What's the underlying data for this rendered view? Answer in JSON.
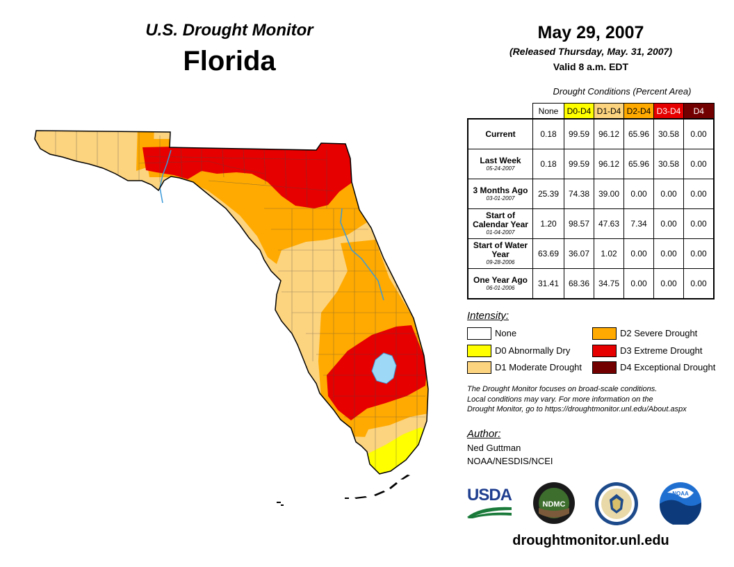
{
  "header": {
    "monitor_title": "U.S. Drought Monitor",
    "state": "Florida",
    "date": "May 29, 2007",
    "released": "(Released Thursday, May. 31, 2007)",
    "valid": "Valid 8 a.m. EDT"
  },
  "table": {
    "caption": "Drought Conditions (Percent Area)",
    "columns": [
      {
        "label": "None",
        "color": "#ffffff",
        "text_color": "#000000"
      },
      {
        "label": "D0-D4",
        "color": "#ffff00",
        "text_color": "#000000"
      },
      {
        "label": "D1-D4",
        "color": "#fcd37f",
        "text_color": "#000000"
      },
      {
        "label": "D2-D4",
        "color": "#ffaa00",
        "text_color": "#000000"
      },
      {
        "label": "D3-D4",
        "color": "#e60000",
        "text_color": "#ffffff"
      },
      {
        "label": "D4",
        "color": "#730000",
        "text_color": "#ffffff"
      }
    ],
    "rows": [
      {
        "label": "Current",
        "date": "",
        "values": [
          "0.18",
          "99.59",
          "96.12",
          "65.96",
          "30.58",
          "0.00"
        ]
      },
      {
        "label": "Last Week",
        "date": "05-24-2007",
        "values": [
          "0.18",
          "99.59",
          "96.12",
          "65.96",
          "30.58",
          "0.00"
        ]
      },
      {
        "label": "3 Months Ago",
        "date": "03-01-2007",
        "values": [
          "25.39",
          "74.38",
          "39.00",
          "0.00",
          "0.00",
          "0.00"
        ]
      },
      {
        "label": "Start of Calendar Year",
        "date": "01-04-2007",
        "values": [
          "1.20",
          "98.57",
          "47.63",
          "7.34",
          "0.00",
          "0.00"
        ]
      },
      {
        "label": "Start of Water Year",
        "date": "09-28-2006",
        "values": [
          "63.69",
          "36.07",
          "1.02",
          "0.00",
          "0.00",
          "0.00"
        ]
      },
      {
        "label": "One Year Ago",
        "date": "06-01-2006",
        "values": [
          "31.41",
          "68.36",
          "34.75",
          "0.00",
          "0.00",
          "0.00"
        ]
      }
    ]
  },
  "legend": {
    "title": "Intensity:",
    "items": [
      {
        "label": "None",
        "color": "#ffffff"
      },
      {
        "label": "D0 Abnormally Dry",
        "color": "#ffff00"
      },
      {
        "label": "D1 Moderate Drought",
        "color": "#fcd37f"
      },
      {
        "label": "D2 Severe Drought",
        "color": "#ffaa00"
      },
      {
        "label": "D3 Extreme Drought",
        "color": "#e60000"
      },
      {
        "label": "D4 Exceptional Drought",
        "color": "#730000"
      }
    ]
  },
  "note": {
    "line1": "The Drought Monitor focuses on broad-scale conditions.",
    "line2": "Local conditions may vary. For more information on the",
    "line3": "Drought Monitor, go to https://droughtmonitor.unl.edu/About.aspx"
  },
  "author": {
    "title": "Author:",
    "name": "Ned Guttman",
    "org": "NOAA/NESDIS/NCEI"
  },
  "logos": {
    "usda": "USDA",
    "ndmc": "NDMC",
    "noaa": "NOAA"
  },
  "website": "droughtmonitor.unl.edu",
  "colors": {
    "water": "#9dd9f7",
    "river": "#3a9ad9"
  }
}
